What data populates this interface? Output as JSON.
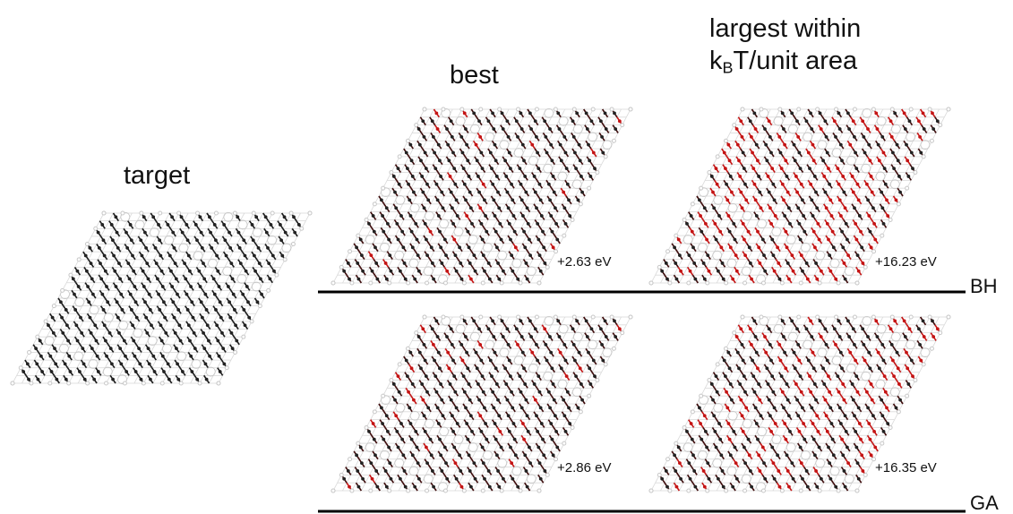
{
  "headers": {
    "target": "target",
    "best": "best",
    "largest_line1": "largest within",
    "largest_k": "k",
    "largest_sub": "B",
    "largest_rest": "T/unit area"
  },
  "panels": [
    {
      "id": "target",
      "energy": ""
    },
    {
      "id": "bh-best",
      "method": "BH",
      "column": "best",
      "energy": "+2.63 eV"
    },
    {
      "id": "bh-largest",
      "method": "BH",
      "column": "largest",
      "energy": "+16.23 eV"
    },
    {
      "id": "ga-best",
      "method": "GA",
      "column": "best",
      "energy": "+2.86 eV"
    },
    {
      "id": "ga-largest",
      "method": "GA",
      "column": "largest",
      "energy": "+16.35 eV"
    }
  ],
  "methods": {
    "bh": "BH",
    "ga": "GA"
  },
  "colors": {
    "bond_dark": "#1a1a1a",
    "bond_maroon": "#3d0a0a",
    "bond_red": "#c41414",
    "atom_grey": "#c8c8c8",
    "line": "#000000"
  },
  "deviation_level": {
    "target": 0,
    "bh-best": 0.06,
    "ga-best": 0.07,
    "bh-largest": 0.5,
    "ga-largest": 0.35
  }
}
